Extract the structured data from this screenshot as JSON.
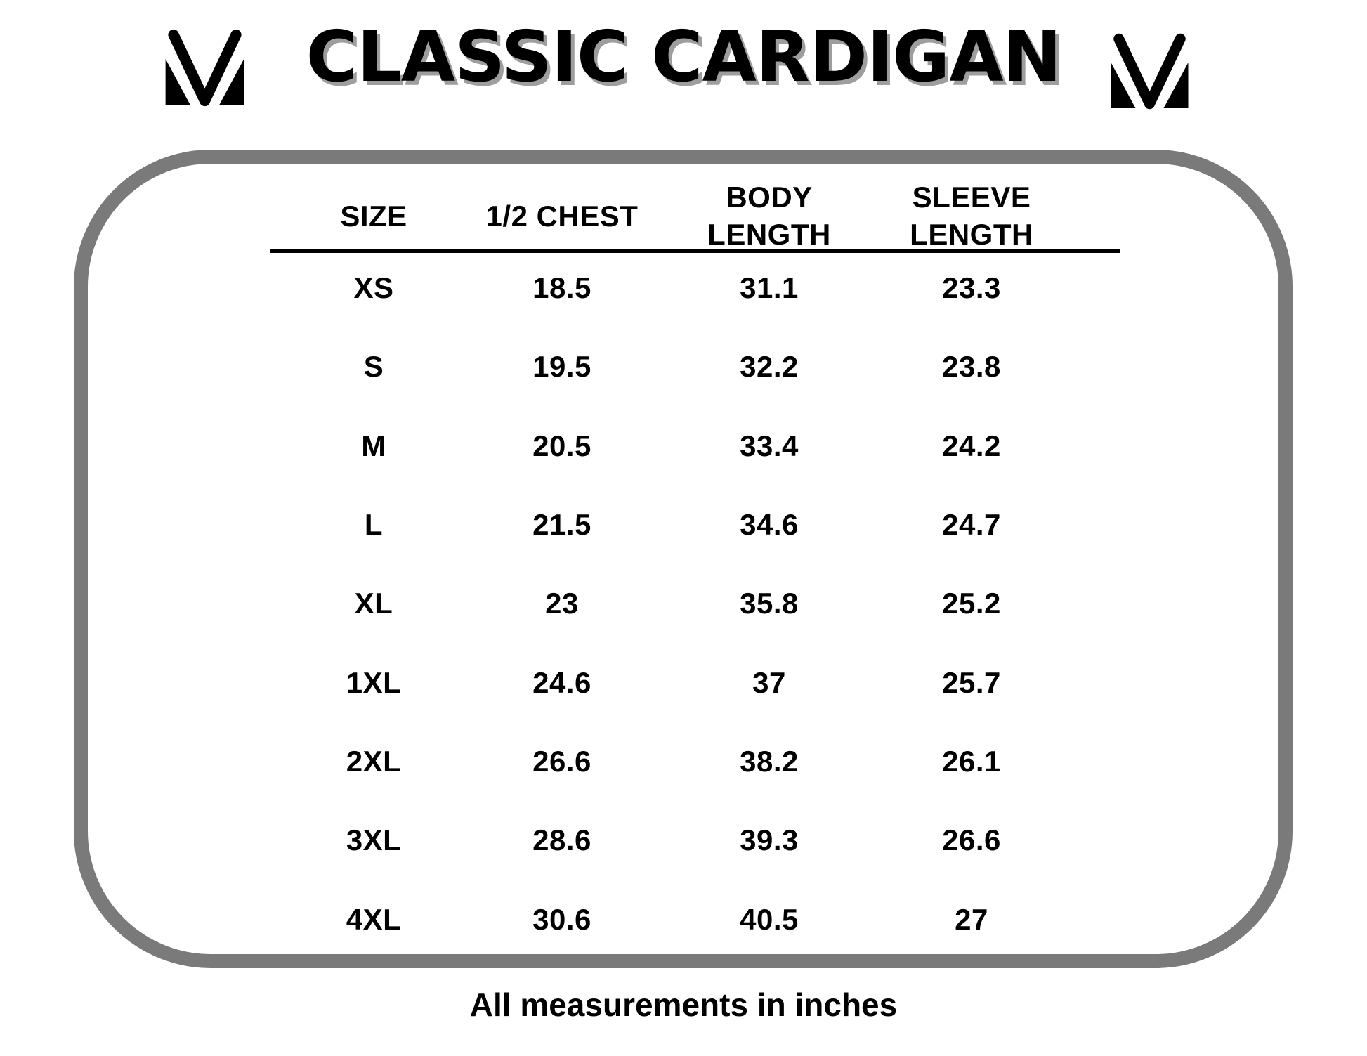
{
  "page": {
    "title": "CLASSIC CARDIGAN",
    "footnote": "All measurements in inches"
  },
  "logo_icon": "mv-monogram-logo",
  "colors": {
    "background": "#ffffff",
    "text": "#000000",
    "frame_gray": "#7a7a7a",
    "title_shadow": "#9e9e9e"
  },
  "table": {
    "headers": [
      [
        "SIZE"
      ],
      [
        "1/2 CHEST"
      ],
      [
        "BODY",
        "LENGTH"
      ],
      [
        "SLEEVE",
        "LENGTH"
      ]
    ],
    "rows": [
      [
        "XS",
        "18.5",
        "31.1",
        "23.3"
      ],
      [
        "S",
        "19.5",
        "32.2",
        "23.8"
      ],
      [
        "M",
        "20.5",
        "33.4",
        "24.2"
      ],
      [
        "L",
        "21.5",
        "34.6",
        "24.7"
      ],
      [
        "XL",
        "23",
        "35.8",
        "25.2"
      ],
      [
        "1XL",
        "24.6",
        "37",
        "25.7"
      ],
      [
        "2XL",
        "26.6",
        "38.2",
        "26.1"
      ],
      [
        "3XL",
        "28.6",
        "39.3",
        "26.6"
      ],
      [
        "4XL",
        "30.6",
        "40.5",
        "27"
      ]
    ]
  },
  "chart_data": {
    "type": "table",
    "title": "CLASSIC CARDIGAN",
    "columns": [
      "SIZE",
      "1/2 CHEST",
      "BODY LENGTH",
      "SLEEVE LENGTH"
    ],
    "rows": [
      {
        "size": "XS",
        "half_chest": 18.5,
        "body_length": 31.1,
        "sleeve_length": 23.3
      },
      {
        "size": "S",
        "half_chest": 19.5,
        "body_length": 32.2,
        "sleeve_length": 23.8
      },
      {
        "size": "M",
        "half_chest": 20.5,
        "body_length": 33.4,
        "sleeve_length": 24.2
      },
      {
        "size": "L",
        "half_chest": 21.5,
        "body_length": 34.6,
        "sleeve_length": 24.7
      },
      {
        "size": "XL",
        "half_chest": 23,
        "body_length": 35.8,
        "sleeve_length": 25.2
      },
      {
        "size": "1XL",
        "half_chest": 24.6,
        "body_length": 37,
        "sleeve_length": 25.7
      },
      {
        "size": "2XL",
        "half_chest": 26.6,
        "body_length": 38.2,
        "sleeve_length": 26.1
      },
      {
        "size": "3XL",
        "half_chest": 28.6,
        "body_length": 39.3,
        "sleeve_length": 26.6
      },
      {
        "size": "4XL",
        "half_chest": 30.6,
        "body_length": 40.5,
        "sleeve_length": 27
      }
    ],
    "units": "inches",
    "footnote": "All measurements in inches"
  }
}
